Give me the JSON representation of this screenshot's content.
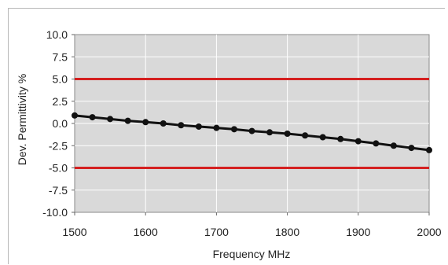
{
  "chart_data": {
    "type": "line",
    "xlabel": "Frequency MHz",
    "ylabel": "Dev. Permittivity %",
    "xlim": [
      1500,
      2000
    ],
    "ylim": [
      -10,
      10
    ],
    "x_ticks": [
      1500,
      1600,
      1700,
      1800,
      1900,
      2000
    ],
    "x_tick_labels": [
      "1500",
      "1600",
      "1700",
      "1800",
      "1900",
      "2000"
    ],
    "y_ticks": [
      10,
      7.5,
      5,
      2.5,
      0,
      -2.5,
      -5,
      -7.5,
      -10
    ],
    "y_tick_labels": [
      "10.0",
      "7.5",
      "5.0",
      "2.5",
      "0.0",
      "-2.5",
      "-5.0",
      "-7.5",
      "-10.0"
    ],
    "grid": true,
    "colors": {
      "plot_bg": "#d9d9d9",
      "grid": "#ffffff",
      "series": "#111111",
      "limits": "#d42020"
    },
    "series": [
      {
        "x": [
          1500,
          1525,
          1550,
          1575,
          1600,
          1625,
          1650,
          1675,
          1700,
          1725,
          1750,
          1775,
          1800,
          1825,
          1850,
          1875,
          1900,
          1925,
          1950,
          1975,
          2000
        ],
        "values": [
          0.9,
          0.7,
          0.5,
          0.3,
          0.15,
          0.0,
          -0.2,
          -0.35,
          -0.5,
          -0.65,
          -0.85,
          -1.0,
          -1.15,
          -1.35,
          -1.55,
          -1.75,
          -2.0,
          -2.25,
          -2.5,
          -2.75,
          -3.0
        ],
        "marker": "circle"
      }
    ],
    "reference_lines": [
      {
        "y": 5.0
      },
      {
        "y": -5.0
      }
    ]
  }
}
